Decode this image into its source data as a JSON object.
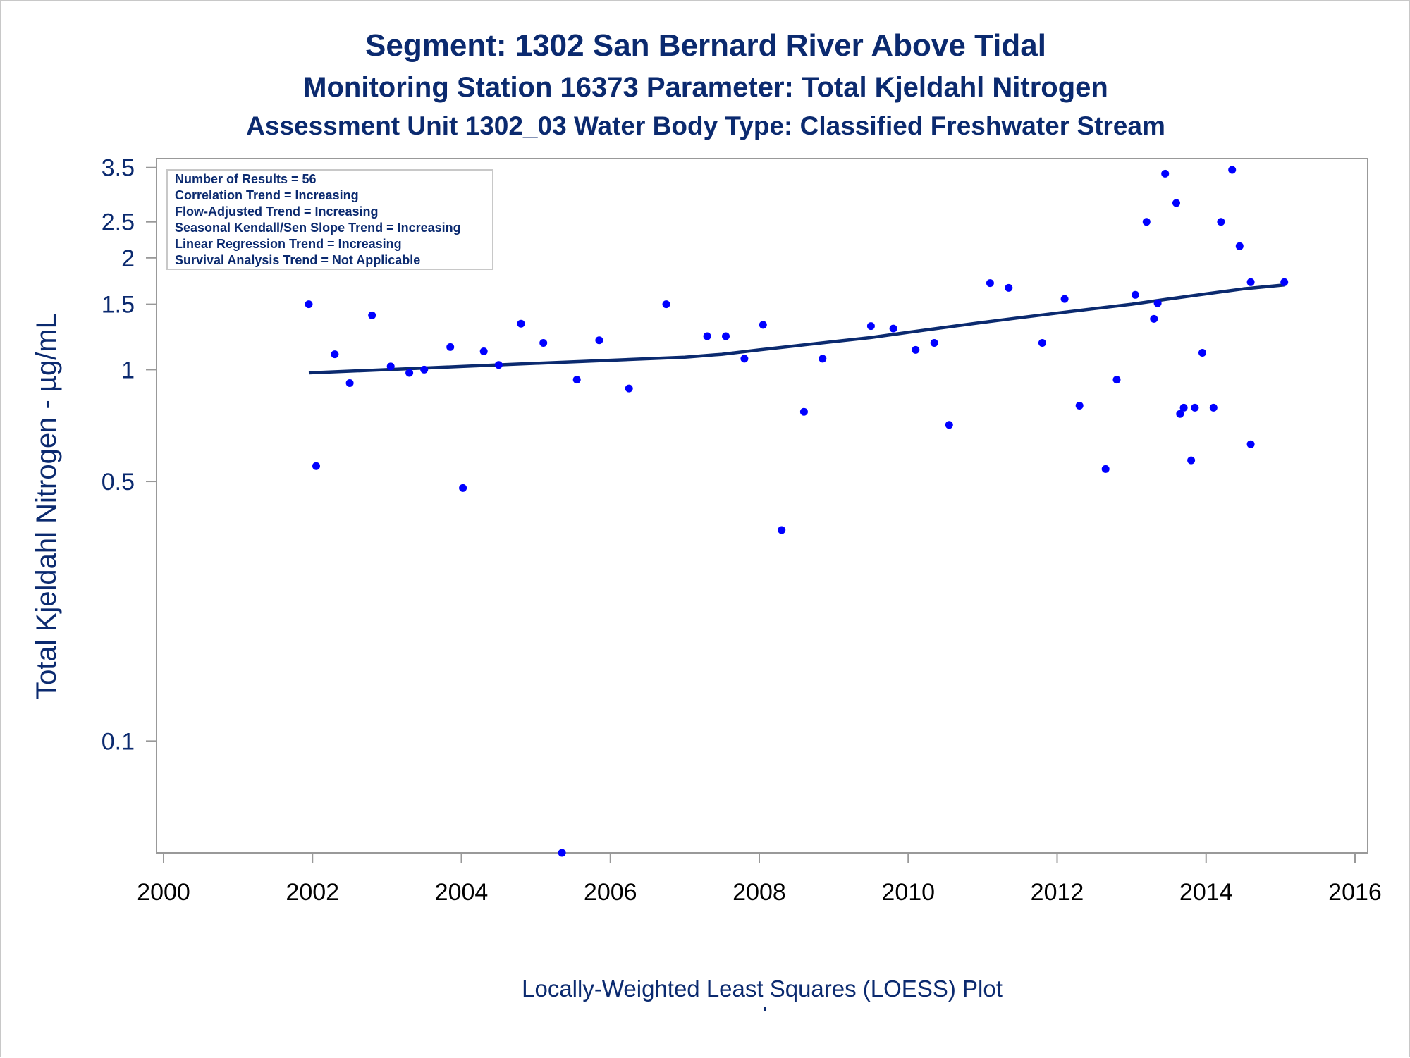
{
  "titles": {
    "line1": "Segment: 1302  San Bernard River Above Tidal",
    "line2": "Monitoring Station 16373 Parameter: Total Kjeldahl Nitrogen",
    "line3": "Assessment Unit 1302_03   Water Body Type: Classified Freshwater Stream"
  },
  "inset_stats": [
    "Number of Results = 56",
    "Correlation Trend = Increasing",
    "Flow-Adjusted Trend = Increasing",
    "Seasonal Kendall/Sen Slope Trend = Increasing",
    "Linear Regression Trend = Increasing",
    "Survival Analysis Trend = Not Applicable"
  ],
  "footnote": {
    "text": "Locally-Weighted Least Squares (LOESS) Plot",
    "mark": "'"
  },
  "colors": {
    "title": "#0b2a6f",
    "points": "#0000ff",
    "trend_line": "#0b2a6f",
    "frame": "#999999"
  },
  "chart_data": {
    "type": "scatter",
    "ylabel": "Total Kjeldahl Nitrogen -  µg/mL",
    "xlabel": "",
    "y_scale": "log",
    "xlim": [
      2000,
      2016
    ],
    "ylim": [
      0.05,
      3.7
    ],
    "x_ticks": [
      2000,
      2002,
      2004,
      2006,
      2008,
      2010,
      2012,
      2014,
      2016
    ],
    "y_ticks": [
      {
        "value": 0.1,
        "label": "0.1"
      },
      {
        "value": 0.5,
        "label": "0.5"
      },
      {
        "value": 1,
        "label": "1"
      },
      {
        "value": 1.5,
        "label": "1.5"
      },
      {
        "value": 2,
        "label": "2"
      },
      {
        "value": 2.5,
        "label": "2.5"
      },
      {
        "value": 3.5,
        "label": "3.5"
      }
    ],
    "legend_position": "top-left",
    "points": [
      [
        2001.95,
        1.5
      ],
      [
        2002.05,
        0.55
      ],
      [
        2002.3,
        1.1
      ],
      [
        2002.5,
        0.92
      ],
      [
        2002.8,
        1.4
      ],
      [
        2003.05,
        1.02
      ],
      [
        2003.3,
        0.98
      ],
      [
        2003.5,
        1.0
      ],
      [
        2003.85,
        1.15
      ],
      [
        2004.02,
        0.48
      ],
      [
        2004.3,
        1.12
      ],
      [
        2004.5,
        1.03
      ],
      [
        2004.8,
        1.33
      ],
      [
        2005.1,
        1.18
      ],
      [
        2005.35,
        0.05
      ],
      [
        2005.55,
        0.94
      ],
      [
        2005.85,
        1.2
      ],
      [
        2006.25,
        0.89
      ],
      [
        2006.75,
        1.5
      ],
      [
        2007.3,
        1.23
      ],
      [
        2007.55,
        1.23
      ],
      [
        2007.8,
        1.07
      ],
      [
        2008.05,
        1.32
      ],
      [
        2008.3,
        0.37
      ],
      [
        2008.6,
        0.77
      ],
      [
        2008.85,
        1.07
      ],
      [
        2009.5,
        1.31
      ],
      [
        2009.8,
        1.29
      ],
      [
        2010.1,
        1.13
      ],
      [
        2010.35,
        1.18
      ],
      [
        2010.55,
        0.71
      ],
      [
        2011.1,
        1.71
      ],
      [
        2011.35,
        1.66
      ],
      [
        2011.8,
        1.18
      ],
      [
        2012.1,
        1.55
      ],
      [
        2012.3,
        0.8
      ],
      [
        2012.65,
        0.54
      ],
      [
        2012.8,
        0.94
      ],
      [
        2013.05,
        1.59
      ],
      [
        2013.2,
        2.5
      ],
      [
        2013.3,
        1.37
      ],
      [
        2013.35,
        1.51
      ],
      [
        2013.45,
        3.37
      ],
      [
        2013.6,
        2.81
      ],
      [
        2013.65,
        0.76
      ],
      [
        2013.7,
        0.79
      ],
      [
        2013.8,
        0.57
      ],
      [
        2013.85,
        0.79
      ],
      [
        2013.95,
        1.11
      ],
      [
        2014.1,
        0.79
      ],
      [
        2014.2,
        2.5
      ],
      [
        2014.35,
        3.45
      ],
      [
        2014.45,
        2.15
      ],
      [
        2014.6,
        0.63
      ],
      [
        2014.6,
        1.72
      ],
      [
        2015.05,
        1.72
      ]
    ],
    "trend_line": {
      "name": "LOESS",
      "points": [
        [
          2001.95,
          0.98
        ],
        [
          2003.0,
          1.0
        ],
        [
          2004.0,
          1.02
        ],
        [
          2005.0,
          1.04
        ],
        [
          2006.0,
          1.06
        ],
        [
          2007.0,
          1.08
        ],
        [
          2007.5,
          1.1
        ],
        [
          2008.0,
          1.13
        ],
        [
          2008.5,
          1.16
        ],
        [
          2009.0,
          1.19
        ],
        [
          2009.5,
          1.22
        ],
        [
          2010.0,
          1.26
        ],
        [
          2010.5,
          1.3
        ],
        [
          2011.0,
          1.34
        ],
        [
          2011.5,
          1.38
        ],
        [
          2012.0,
          1.42
        ],
        [
          2012.5,
          1.46
        ],
        [
          2013.0,
          1.5
        ],
        [
          2013.5,
          1.55
        ],
        [
          2014.0,
          1.6
        ],
        [
          2014.5,
          1.65
        ],
        [
          2015.05,
          1.69
        ]
      ]
    }
  }
}
